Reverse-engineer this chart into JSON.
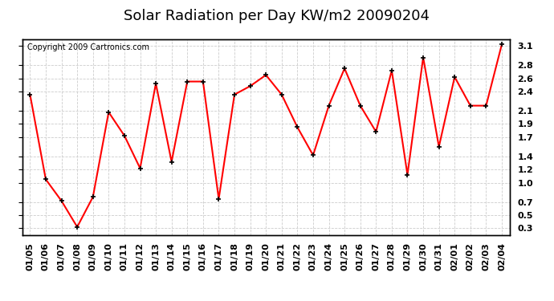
{
  "title": "Solar Radiation per Day KW/m2 20090204",
  "copyright": "Copyright 2009 Cartronics.com",
  "dates": [
    "01/05",
    "01/06",
    "01/07",
    "01/08",
    "01/09",
    "01/10",
    "01/11",
    "01/12",
    "01/13",
    "01/14",
    "01/15",
    "01/16",
    "01/17",
    "01/18",
    "01/19",
    "01/20",
    "01/21",
    "01/22",
    "01/23",
    "01/24",
    "01/25",
    "01/26",
    "01/27",
    "01/28",
    "01/29",
    "01/30",
    "01/31",
    "02/01",
    "02/02",
    "02/03",
    "02/04"
  ],
  "values": [
    2.35,
    1.05,
    0.72,
    0.32,
    0.78,
    2.08,
    1.72,
    1.22,
    2.52,
    1.32,
    2.55,
    2.55,
    0.75,
    2.35,
    2.48,
    2.65,
    2.35,
    1.85,
    1.42,
    2.18,
    2.75,
    2.18,
    1.78,
    2.72,
    1.12,
    2.92,
    1.55,
    2.62,
    2.18,
    2.18,
    3.12
  ],
  "line_color": "#ff0000",
  "marker_color": "#000000",
  "bg_color": "#ffffff",
  "grid_color": "#cccccc",
  "yticks": [
    0.3,
    0.5,
    0.7,
    1.0,
    1.2,
    1.4,
    1.7,
    1.9,
    2.1,
    2.4,
    2.6,
    2.8,
    3.1
  ],
  "ytick_labels": [
    "0.3",
    "0.5",
    "0.7",
    "1.0",
    "1.2",
    "1.4",
    "1.7",
    "1.9",
    "2.1",
    "2.4",
    "2.6",
    "2.8",
    "3.1"
  ],
  "ymin": 0.2,
  "ymax": 3.2,
  "title_fontsize": 13,
  "tick_fontsize": 8,
  "copyright_fontsize": 7
}
